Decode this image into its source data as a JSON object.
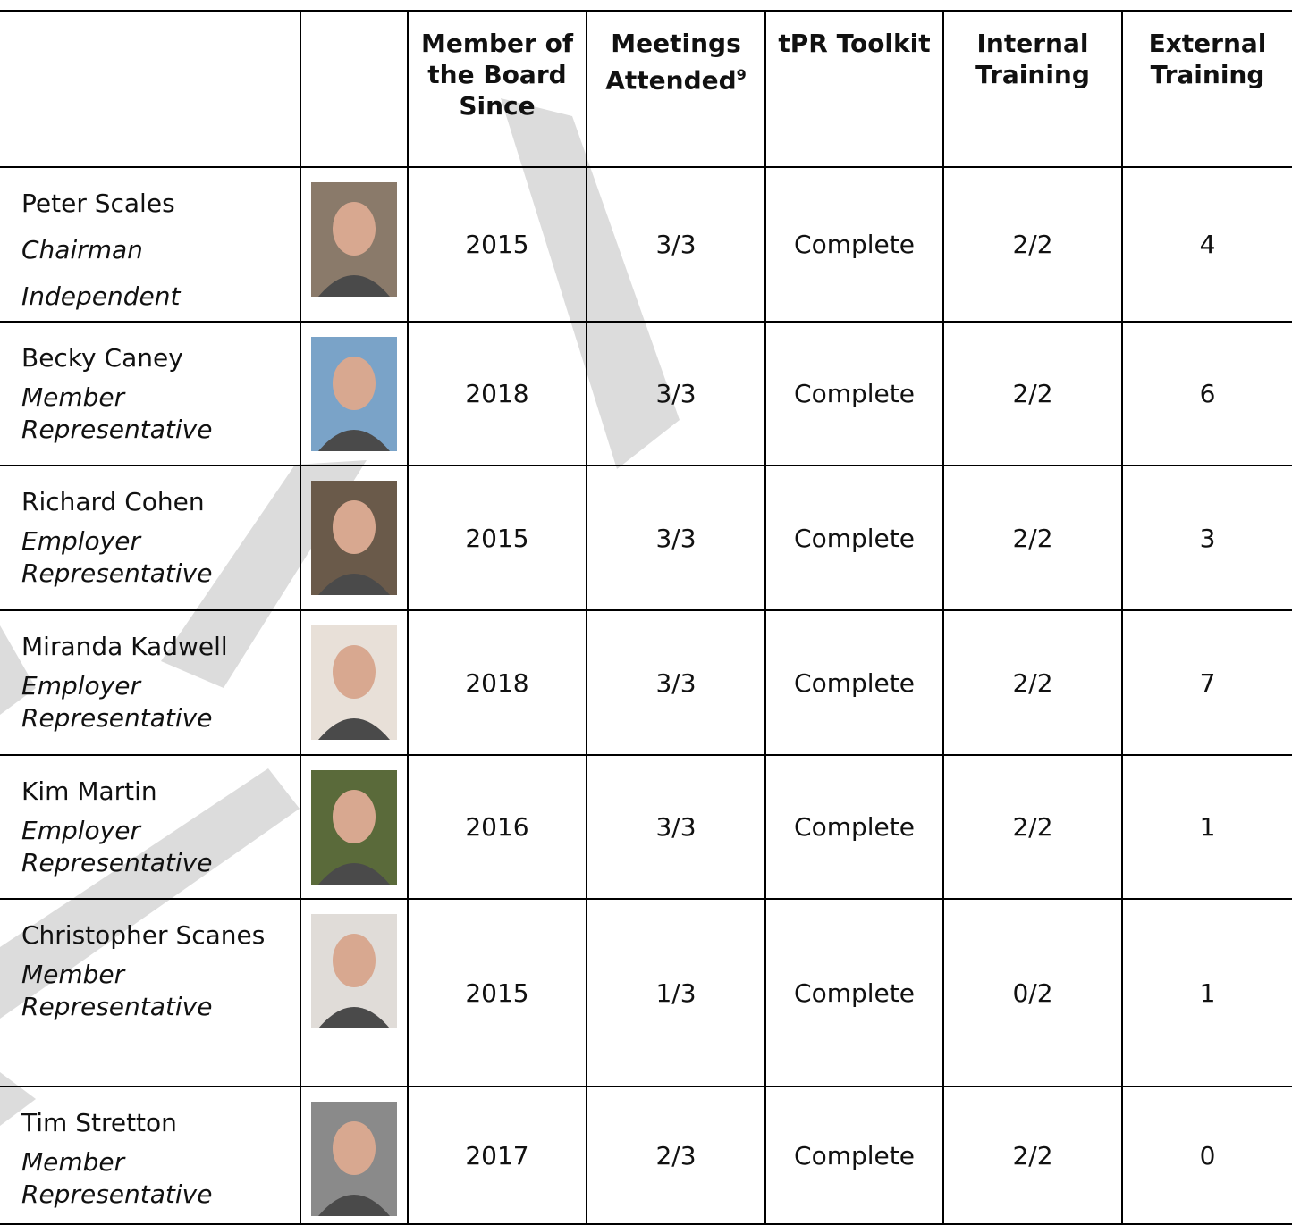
{
  "header": {
    "columns": [
      "Member of the Board Since",
      "Meetings Attended",
      "tPR Toolkit",
      "Internal Training",
      "External Training"
    ],
    "footnote_ref": "9"
  },
  "rows": [
    {
      "name": "Peter Scales",
      "roles": [
        "Chairman",
        "Independent"
      ],
      "since": "2015",
      "meetings": "3/3",
      "toolkit": "Complete",
      "internal": "2/2",
      "external": "4"
    },
    {
      "name": "Becky Caney",
      "roles": [
        "Member Representative"
      ],
      "since": "2018",
      "meetings": "3/3",
      "toolkit": "Complete",
      "internal": "2/2",
      "external": "6"
    },
    {
      "name": "Richard Cohen",
      "roles": [
        "Employer Representative"
      ],
      "since": "2015",
      "meetings": "3/3",
      "toolkit": "Complete",
      "internal": "2/2",
      "external": "3"
    },
    {
      "name": "Miranda Kadwell",
      "roles": [
        "Employer Representative"
      ],
      "since": "2018",
      "meetings": "3/3",
      "toolkit": "Complete",
      "internal": "2/2",
      "external": "7"
    },
    {
      "name": "Kim Martin",
      "roles": [
        "Employer Representative"
      ],
      "since": "2016",
      "meetings": "3/3",
      "toolkit": "Complete",
      "internal": "2/2",
      "external": "1"
    },
    {
      "name": "Christopher Scanes",
      "roles": [
        "Member Representative"
      ],
      "since": "2015",
      "meetings": "1/3",
      "toolkit": "Complete",
      "internal": "0/2",
      "external": "1"
    },
    {
      "name": "Tim Stretton",
      "roles": [
        "Member Representative"
      ],
      "since": "2017",
      "meetings": "2/3",
      "toolkit": "Complete",
      "internal": "2/2",
      "external": "0"
    }
  ]
}
